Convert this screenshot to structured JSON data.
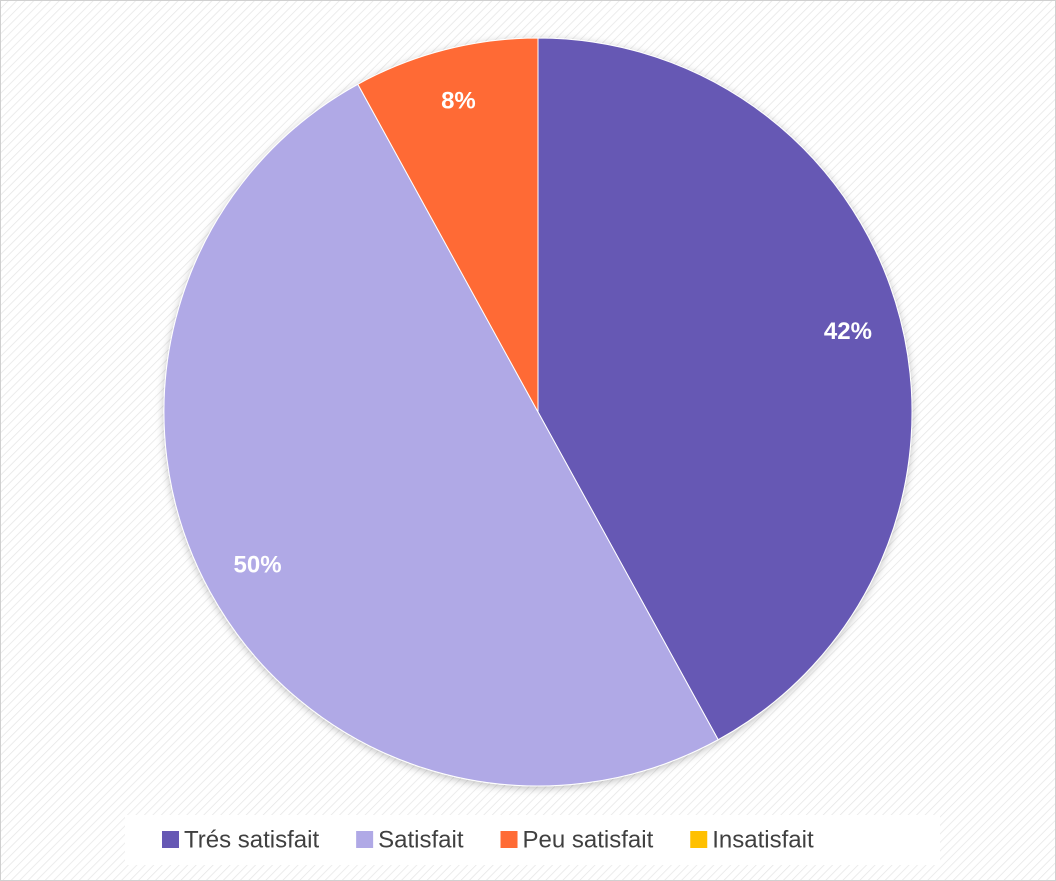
{
  "chart_data": {
    "type": "pie",
    "categories": [
      "Trés satisfait",
      "Satisfait",
      "Peu satisfait",
      "Insatisfait"
    ],
    "values": [
      42,
      50,
      8,
      0
    ],
    "value_labels": [
      "42%",
      "50%",
      "8%",
      null
    ],
    "colors": [
      "#6658b4",
      "#b0a9e6",
      "#ff6b35",
      "#ffc000"
    ],
    "legend": "bottom"
  }
}
